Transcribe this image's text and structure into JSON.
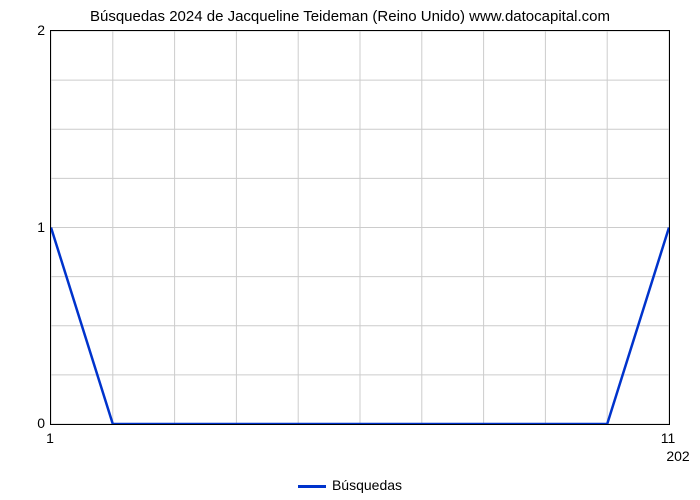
{
  "chart": {
    "type": "line",
    "title": "Búsquedas 2024 de Jacqueline Teideman (Reino Unido) www.datocapital.com",
    "title_fontsize": 15,
    "background_color": "#ffffff",
    "grid_color": "#cccccc",
    "axis_color": "#000000",
    "tick_fontsize": 14,
    "x": {
      "min": 1,
      "max": 11,
      "ticks": [
        1,
        11
      ],
      "sec_labels": [
        "202"
      ]
    },
    "y": {
      "min": 0,
      "max": 2,
      "ticks": [
        0,
        1,
        2
      ],
      "minor_count": 3
    },
    "series": {
      "name": "Búsquedas",
      "color": "#0033cc",
      "line_width": 2.5,
      "x": [
        1,
        2,
        3,
        4,
        5,
        6,
        7,
        8,
        9,
        10,
        11
      ],
      "y": [
        1,
        0,
        0,
        0,
        0,
        0,
        0,
        0,
        0,
        0,
        1
      ]
    },
    "legend": {
      "label": "Búsquedas"
    }
  }
}
